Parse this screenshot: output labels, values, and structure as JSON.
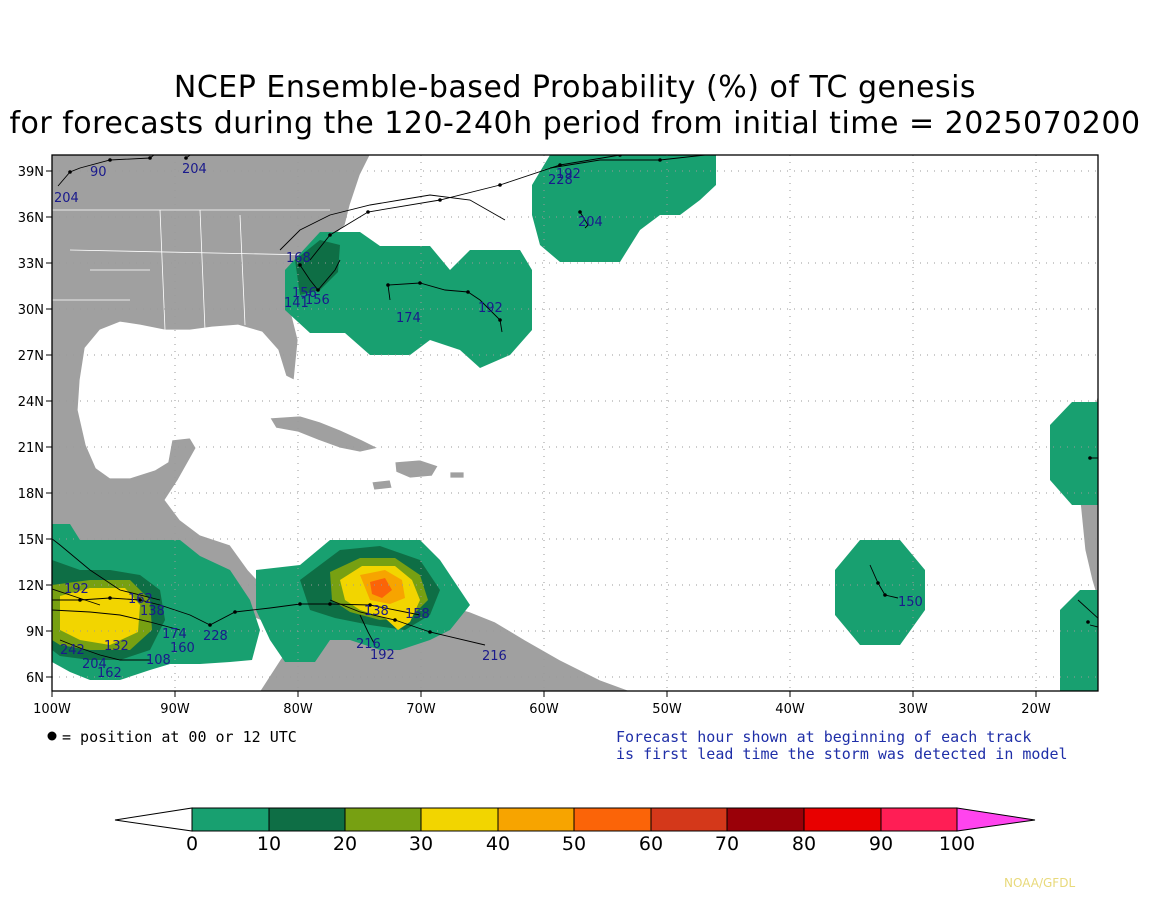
{
  "title": {
    "line1": "NCEP Ensemble-based Probability (%) of TC genesis",
    "line2": "for forecasts during the 120-240h period from initial time = 2025070200"
  },
  "axes": {
    "lat_labels": [
      "39N",
      "36N",
      "33N",
      "30N",
      "27N",
      "24N",
      "21N",
      "18N",
      "15N",
      "12N",
      "9N",
      "6N"
    ],
    "lon_labels": [
      "100W",
      "90W",
      "80W",
      "70W",
      "60W",
      "50W",
      "40W",
      "30W",
      "20W"
    ]
  },
  "track_labels": [
    "90",
    "204",
    "204",
    "204",
    "228",
    "192",
    "204",
    "168",
    "156",
    "141",
    "156",
    "174",
    "192",
    "150",
    "162",
    "138",
    "192",
    "174",
    "132",
    "108",
    "160",
    "228",
    "204",
    "242",
    "162",
    "216",
    "192",
    "216",
    "138",
    "158"
  ],
  "notes": {
    "legend": "= position at 00 or 12 UTC",
    "forecast_line1": "Forecast hour shown at beginning of each track",
    "forecast_line2": "is first lead time the storm was detected in model"
  },
  "colorbar": {
    "labels": [
      "0",
      "10",
      "20",
      "30",
      "40",
      "50",
      "60",
      "70",
      "80",
      "90",
      "100"
    ],
    "colors": [
      "#18a070",
      "#0e6e45",
      "#77a012",
      "#f2d500",
      "#f7a400",
      "#fb6408",
      "#d4381a",
      "#9a0008",
      "#e80000",
      "#ff1e55",
      "#ff44ee"
    ]
  },
  "credit": "NOAA/GFDL",
  "colors": {
    "land": "#a0a0a0",
    "prob10": "#18a070",
    "prob20": "#0e6e45",
    "prob30": "#77a012",
    "prob40": "#f2d500",
    "prob50": "#f7a400",
    "prob60": "#fb6408",
    "track_label": "#1a1a8c"
  }
}
